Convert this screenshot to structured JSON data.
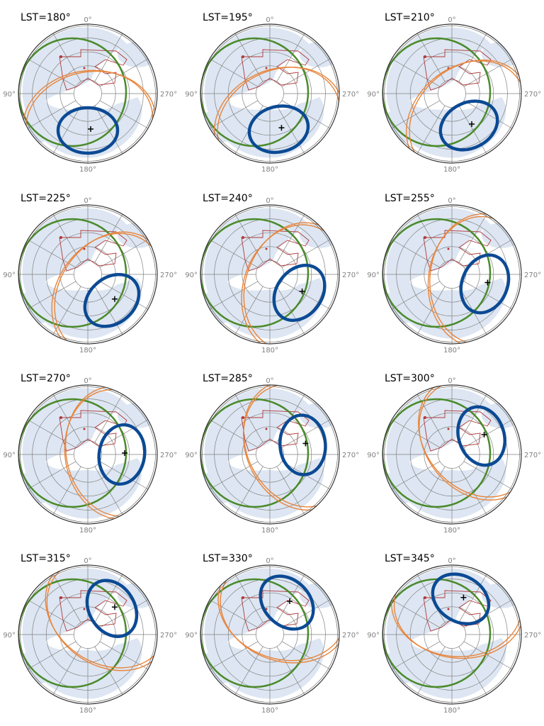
{
  "chart_data": {
    "type": "polar-sky-map",
    "layout": {
      "rows": 4,
      "cols": 3
    },
    "angle_ticks": [
      "0°",
      "90°",
      "180°",
      "270°"
    ],
    "colors": {
      "blue_ellipse": "#0b4a94",
      "green_circle": "#4a8a2a",
      "orange_rings": "#e8843a",
      "red_contours": "#b03a3a",
      "sky_fill": "#dde6f2",
      "grid": "#808080"
    },
    "panels": [
      {
        "title": "LST=180°",
        "lst": 180
      },
      {
        "title": "LST=195°",
        "lst": 195
      },
      {
        "title": "LST=210°",
        "lst": 210
      },
      {
        "title": "LST=225°",
        "lst": 225
      },
      {
        "title": "LST=240°",
        "lst": 240
      },
      {
        "title": "LST=255°",
        "lst": 255
      },
      {
        "title": "LST=270°",
        "lst": 270
      },
      {
        "title": "LST=285°",
        "lst": 285
      },
      {
        "title": "LST=300°",
        "lst": 300
      },
      {
        "title": "LST=315°",
        "lst": 315
      },
      {
        "title": "LST=330°",
        "lst": 330
      },
      {
        "title": "LST=345°",
        "lst": 345
      }
    ]
  }
}
